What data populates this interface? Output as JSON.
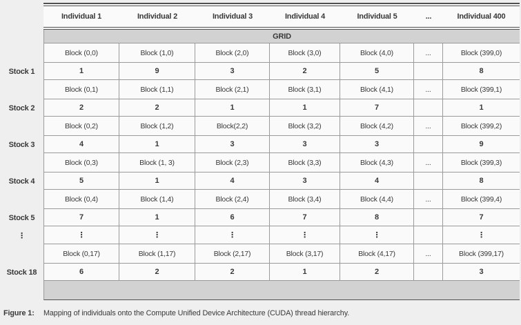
{
  "figure": {
    "caption_label": "Figure 1:",
    "caption_text": "Mapping of individuals onto the Compute Unified Device Architecture (CUDA) thread hierarchy."
  },
  "table": {
    "grid_label": "GRID",
    "columns": [
      "Individual 1",
      "Individual 2",
      "Individual 3",
      "Individual 4",
      "Individual 5",
      "...",
      "Individual 400"
    ],
    "body": [
      {
        "kind": "block",
        "stock": "",
        "cells": [
          "Block (0,0)",
          "Block (1,0)",
          "Block (2,0)",
          "Block (3,0)",
          "Block (4,0)",
          "...",
          "Block (399,0)"
        ]
      },
      {
        "kind": "value",
        "stock": "Stock 1",
        "cells": [
          "1",
          "9",
          "3",
          "2",
          "5",
          "",
          "8"
        ]
      },
      {
        "kind": "block",
        "stock": "",
        "cells": [
          "Block (0,1)",
          "Block (1,1)",
          "Block (2,1)",
          "Block (3,1)",
          "Block (4,1)",
          "...",
          "Block (399,1)"
        ]
      },
      {
        "kind": "value",
        "stock": "Stock 2",
        "cells": [
          "2",
          "2",
          "1",
          "1",
          "7",
          "",
          "1"
        ]
      },
      {
        "kind": "block",
        "stock": "",
        "cells": [
          "Block (0,2)",
          "Block (1,2)",
          "Block(2,2)",
          "Block (3,2)",
          "Block (4,2)",
          "...",
          "Block (399,2)"
        ]
      },
      {
        "kind": "value",
        "stock": "Stock 3",
        "cells": [
          "4",
          "1",
          "3",
          "3",
          "3",
          "",
          "9"
        ]
      },
      {
        "kind": "block",
        "stock": "",
        "cells": [
          "Block (0,3)",
          "Block (1, 3)",
          "Block (2,3)",
          "Block (3,3)",
          "Block (4,3)",
          "...",
          "Block (399,3)"
        ]
      },
      {
        "kind": "value",
        "stock": "Stock 4",
        "cells": [
          "5",
          "1",
          "4",
          "3",
          "4",
          "",
          "8"
        ]
      },
      {
        "kind": "block",
        "stock": "",
        "cells": [
          "Block (0,4)",
          "Block (1,4)",
          "Block (2,4)",
          "Block (3,4)",
          "Block (4,4)",
          "...",
          "Block (399,4)"
        ]
      },
      {
        "kind": "value",
        "stock": "Stock 5",
        "cells": [
          "7",
          "1",
          "6",
          "7",
          "8",
          "",
          "7"
        ]
      },
      {
        "kind": "dots",
        "stock": "⋮",
        "cells": [
          "⋮",
          "⋮",
          "⋮",
          "⋮",
          "⋮",
          "",
          "⋮"
        ]
      },
      {
        "kind": "block",
        "stock": "",
        "cells": [
          "Block (0,17)",
          "Block (1,17)",
          "Block (2,17)",
          "Block (3,17)",
          "Block (4,17)",
          "...",
          "Block (399,17)"
        ]
      },
      {
        "kind": "value",
        "stock": "Stock 18",
        "cells": [
          "6",
          "2",
          "2",
          "1",
          "2",
          "",
          "3"
        ]
      }
    ]
  },
  "colors": {
    "page_bg": "#efefef",
    "cell_bg": "#fafafa",
    "band_bg": "#d2d2d2",
    "line": "#9a9a9a",
    "rule": "#4f4f4f",
    "text": "#383838"
  }
}
